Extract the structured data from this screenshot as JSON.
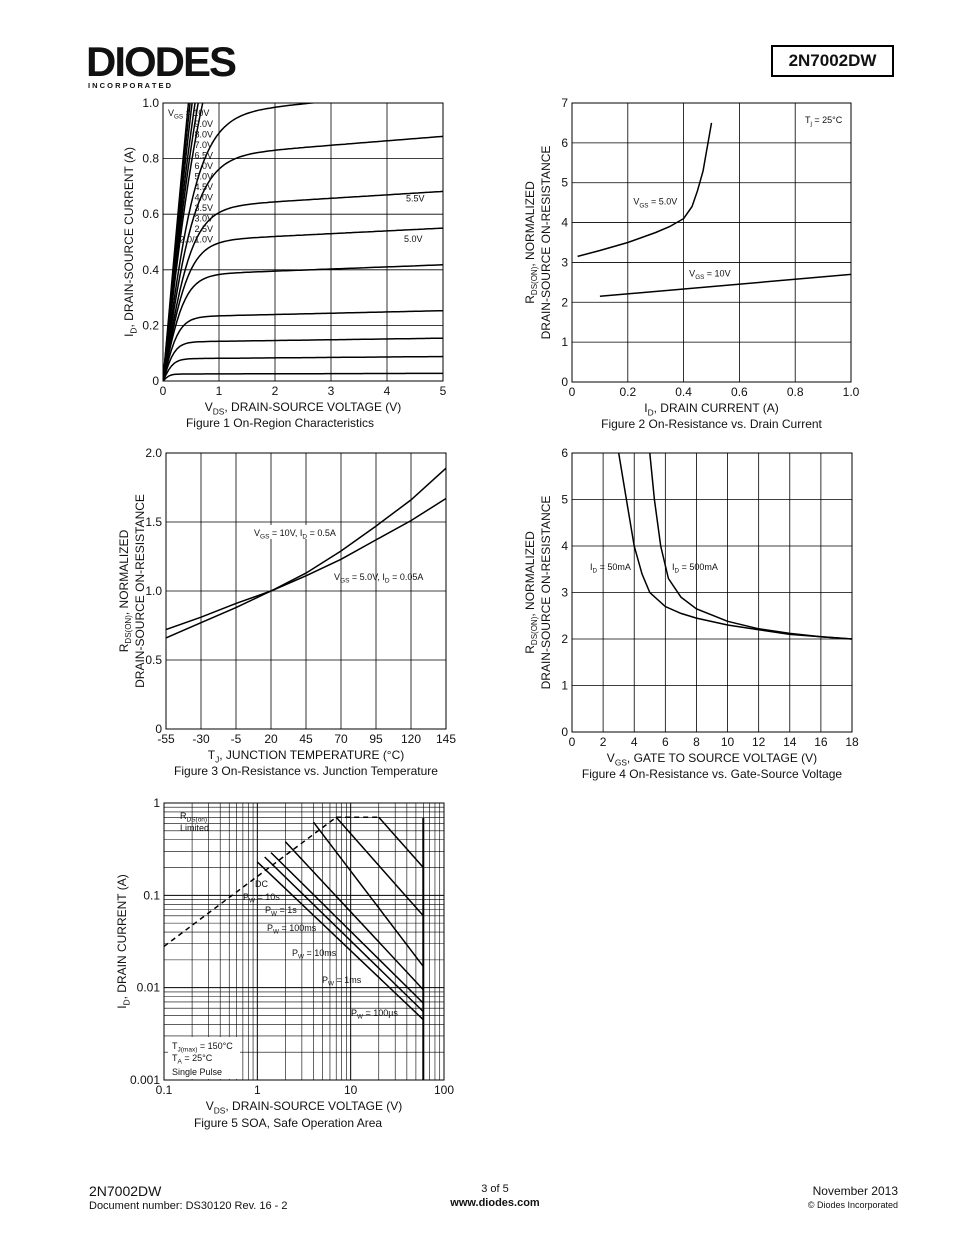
{
  "header": {
    "logo_text": "DIODES",
    "logo_sub": "I N C O R P O R A T E D",
    "part_number": "2N7002DW",
    "brand_color": "#1f4e9c"
  },
  "footer": {
    "part": "2N7002DW",
    "doc": "Document number: DS30120 Rev. 16 - 2",
    "page": "3 of 5",
    "web": "www.diodes.com",
    "date": "November 2013",
    "copyright": "© Diodes Incorporated"
  },
  "chart_data": [
    {
      "id": "fig1",
      "type": "line",
      "caption": "Figure 1  On-Region Characteristics",
      "xlabel_main": "V",
      "xlabel_sub": "DS",
      "xlabel_rest": ", DRAIN-SOURCE VOLTAGE (V)",
      "ylabel_main": "I",
      "ylabel_sub": "D",
      "ylabel_rest": ", DRAIN-SOURCE CURRENT (A)",
      "xlim": [
        0,
        5
      ],
      "ylim": [
        0,
        1.0
      ],
      "xticks": [
        "0",
        "1",
        "2",
        "3",
        "4",
        "5"
      ],
      "yticks": [
        "0",
        "0.2",
        "0.4",
        "0.6",
        "0.8",
        "1.0"
      ],
      "legend_header": "V = 10V",
      "legend_lines": [
        "9.0V",
        "8.0V",
        "7.0V",
        "6.5V",
        "6.0V",
        "5.0V",
        "4.5V",
        "4.0V",
        "3.5V",
        "3.0V",
        "2.5V",
        "2.0/1.0V"
      ],
      "annotations": [
        "5.5V",
        "5.0V"
      ],
      "curves": [
        {
          "sat": 3.0,
          "slope": 0.42
        },
        {
          "sat": 2.6,
          "slope": 0.4
        },
        {
          "sat": 2.2,
          "slope": 0.38
        },
        {
          "sat": 1.8,
          "slope": 0.36
        },
        {
          "sat": 1.6,
          "slope": 0.34
        },
        {
          "sat": 1.4,
          "slope": 0.32
        },
        {
          "sat": 0.95,
          "slope": 0.28
        },
        {
          "sat": 0.8,
          "slope": 0.25
        },
        {
          "sat": 0.62,
          "slope": 0.22
        },
        {
          "sat": 0.5,
          "slope": 0.2
        },
        {
          "sat": 0.38,
          "slope": 0.18
        },
        {
          "sat": 0.23,
          "slope": 0.15
        },
        {
          "sat": 0.14,
          "slope": 0.12
        },
        {
          "sat": 0.08,
          "slope": 0.08
        },
        {
          "sat": 0.025,
          "slope": 0.04
        }
      ]
    },
    {
      "id": "fig2",
      "type": "line",
      "caption": "Figure 2  On-Resistance vs. Drain Current",
      "xlabel_main": "I",
      "xlabel_sub": "D",
      "xlabel_rest": ", DRAIN CURRENT (A)",
      "ylabel_line1": "R  , NORMALIZED",
      "ylabel_sub": "DS(ON)",
      "ylabel_line2": "DRAIN-SOURCE ON-RESISTANCE",
      "xlim": [
        0,
        1.0
      ],
      "ylim": [
        0,
        7
      ],
      "xticks": [
        "0",
        "0.2",
        "0.4",
        "0.6",
        "0.8",
        "1.0"
      ],
      "yticks": [
        "0",
        "1",
        "2",
        "3",
        "4",
        "5",
        "6",
        "7"
      ],
      "note": "T = 25°C",
      "labels": [
        "V = 5.0V",
        "V = 10V"
      ],
      "series": [
        {
          "x": [
            0.02,
            0.1,
            0.2,
            0.3,
            0.35,
            0.4,
            0.43,
            0.45,
            0.47,
            0.48,
            0.49,
            0.5
          ],
          "y": [
            3.15,
            3.3,
            3.5,
            3.75,
            3.9,
            4.1,
            4.4,
            4.8,
            5.3,
            5.7,
            6.1,
            6.5
          ]
        },
        {
          "x": [
            0.1,
            1.0
          ],
          "y": [
            2.15,
            2.7
          ]
        }
      ]
    },
    {
      "id": "fig3",
      "type": "line",
      "caption": "Figure 3  On-Resistance vs. Junction Temperature",
      "xlabel_main": "T",
      "xlabel_sub": "J",
      "xlabel_rest": ", JUNCTION TEMPERATURE (°C)",
      "ylabel_line1": "R  , NORMALIZED",
      "ylabel_sub": "DS(ON)",
      "ylabel_line2": "DRAIN-SOURCE ON-RESISTANCE",
      "xlim": [
        -55,
        145
      ],
      "ylim": [
        0,
        2.0
      ],
      "xticks": [
        "-55",
        "-30",
        "-5",
        "20",
        "45",
        "70",
        "95",
        "120",
        "145"
      ],
      "yticks": [
        "0",
        "0.5",
        "1.0",
        "1.5",
        "2.0"
      ],
      "labels": [
        "V = 10V, I = 0.5A",
        "V = 5.0V, I = 0.05A"
      ],
      "series": [
        {
          "x": [
            -55,
            -30,
            -5,
            20,
            45,
            70,
            95,
            120,
            145
          ],
          "y": [
            0.66,
            0.77,
            0.88,
            1.0,
            1.13,
            1.29,
            1.47,
            1.66,
            1.89
          ]
        },
        {
          "x": [
            -55,
            -30,
            -5,
            20,
            45,
            70,
            95,
            120,
            145
          ],
          "y": [
            0.72,
            0.81,
            0.91,
            1.0,
            1.11,
            1.23,
            1.37,
            1.51,
            1.67
          ]
        }
      ]
    },
    {
      "id": "fig4",
      "type": "line",
      "caption": "Figure 4  On-Resistance vs. Gate-Source Voltage",
      "xlabel_main": "V",
      "xlabel_sub": "GS",
      "xlabel_rest": ", GATE TO SOURCE VOLTAGE (V)",
      "ylabel_line1": "R  , NORMALIZED",
      "ylabel_sub": "DS(ON)",
      "ylabel_line2": "DRAIN-SOURCE ON-RESISTANCE",
      "xlim": [
        0,
        18
      ],
      "ylim": [
        0,
        6
      ],
      "xticks": [
        "0",
        "2",
        "4",
        "6",
        "8",
        "10",
        "12",
        "14",
        "16",
        "18"
      ],
      "yticks": [
        "0",
        "1",
        "2",
        "3",
        "4",
        "5",
        "6"
      ],
      "labels": [
        "I = 50mA",
        "I = 500mA"
      ],
      "series": [
        {
          "x": [
            3.0,
            3.5,
            4.0,
            4.5,
            5,
            6,
            7,
            8,
            10,
            12,
            14,
            16,
            18
          ],
          "y": [
            6.0,
            5.0,
            4.0,
            3.4,
            3.0,
            2.7,
            2.55,
            2.45,
            2.3,
            2.2,
            2.1,
            2.05,
            2.0
          ]
        },
        {
          "x": [
            5.0,
            5.3,
            5.7,
            6.2,
            7,
            8,
            10,
            12,
            14,
            16,
            18
          ],
          "y": [
            6.0,
            5.0,
            4.0,
            3.3,
            2.9,
            2.65,
            2.38,
            2.22,
            2.12,
            2.05,
            2.0
          ]
        }
      ]
    },
    {
      "id": "fig5",
      "type": "line",
      "caption": "Figure 5  SOA, Safe Operation Area",
      "xlabel_main": "V",
      "xlabel_sub": "DS",
      "xlabel_rest": ", DRAIN-SOURCE VOLTAGE (V)",
      "ylabel_main": "I",
      "ylabel_sub": "D",
      "ylabel_rest": ", DRAIN CURRENT (A)",
      "xscale": "log",
      "yscale": "log",
      "xlim": [
        0.1,
        100
      ],
      "ylim": [
        0.001,
        1
      ],
      "xticks": [
        "0.1",
        "1",
        "10",
        "100"
      ],
      "yticks": [
        "0.001",
        "0.01",
        "0.1",
        "1"
      ],
      "labels": [
        "R",
        "Limited",
        "DC",
        "P = 10s",
        "P = 1s",
        "P = 100ms",
        "P = 10ms",
        "P = 1ms",
        "P = 100µs"
      ],
      "conditions": [
        "T       = 150°C",
        "T  = 25°C",
        "Single Pulse"
      ],
      "rds_limit": {
        "x": [
          0.1,
          7.0
        ],
        "y": [
          0.028,
          0.7
        ]
      },
      "lines": [
        {
          "x": [
            1.0,
            60
          ],
          "y": [
            0.23,
            0.0045
          ]
        },
        {
          "x": [
            1.2,
            60
          ],
          "y": [
            0.26,
            0.0055
          ]
        },
        {
          "x": [
            1.4,
            60
          ],
          "y": [
            0.29,
            0.0068
          ]
        },
        {
          "x": [
            2.0,
            60
          ],
          "y": [
            0.38,
            0.0095
          ]
        },
        {
          "x": [
            4.0,
            60
          ],
          "y": [
            0.62,
            0.017
          ]
        },
        {
          "x": [
            7.0,
            60
          ],
          "y": [
            0.7,
            0.06
          ]
        },
        {
          "x": [
            20,
            60
          ],
          "y": [
            0.7,
            0.2
          ]
        }
      ]
    }
  ]
}
